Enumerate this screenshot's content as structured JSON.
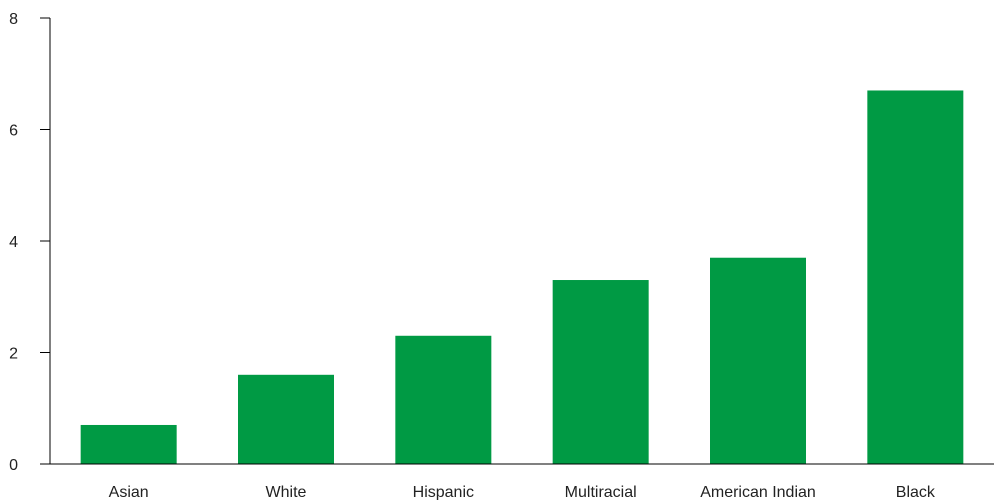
{
  "chart_data": {
    "type": "bar",
    "categories": [
      "Asian",
      "White",
      "Hispanic",
      "Multiracial",
      "American Indian",
      "Black"
    ],
    "values": [
      0.7,
      1.6,
      2.3,
      3.3,
      3.7,
      6.7
    ],
    "title": "",
    "xlabel": "",
    "ylabel": "",
    "ylim": [
      0,
      8
    ],
    "yticks": [
      "0",
      "2",
      "4",
      "6",
      "8"
    ],
    "grid": false,
    "bar_color": "#009a44"
  }
}
